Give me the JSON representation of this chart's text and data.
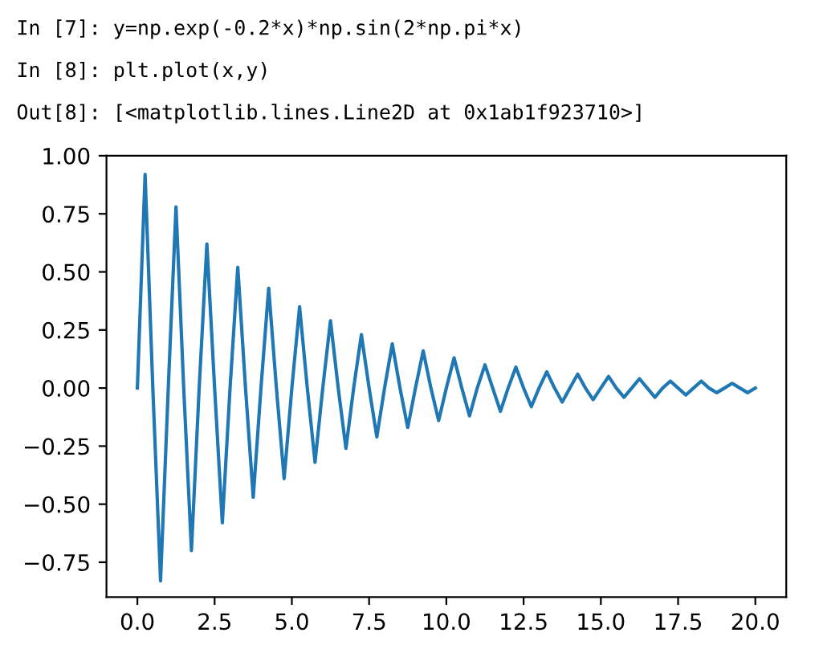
{
  "chart_data": {
    "type": "line",
    "annotations": [
      "In [7]: y=np.exp(-0.2*x)*np.sin(2*np.pi*x)",
      "In [8]: plt.plot(x,y)",
      "Out[8]: [<matplotlib.lines.Line2D at 0x1ab1f923710>]"
    ],
    "series": [
      {
        "color": "#1f77b4",
        "x": [
          0,
          0.25,
          0.5,
          0.75,
          1,
          1.25,
          1.5,
          1.75,
          2,
          2.25,
          2.5,
          2.75,
          3,
          3.25,
          3.5,
          3.75,
          4,
          4.25,
          4.5,
          4.75,
          5,
          5.25,
          5.5,
          5.75,
          6,
          6.25,
          6.5,
          6.75,
          7,
          7.25,
          7.5,
          7.75,
          8,
          8.25,
          8.5,
          8.75,
          9,
          9.25,
          9.5,
          9.75,
          10,
          10.25,
          10.5,
          10.75,
          11,
          11.25,
          11.5,
          11.75,
          12,
          12.25,
          12.5,
          12.75,
          13,
          13.25,
          13.5,
          13.75,
          14,
          14.25,
          14.5,
          14.75,
          15,
          15.25,
          15.5,
          15.75,
          16,
          16.25,
          16.5,
          16.75,
          17,
          17.25,
          17.5,
          17.75,
          18,
          18.25,
          18.5,
          18.75,
          19,
          19.25,
          19.5,
          19.75,
          20
        ],
        "values": [
          0,
          0.92,
          0,
          -0.83,
          0,
          0.78,
          0,
          -0.7,
          0,
          0.62,
          0,
          -0.58,
          0,
          0.52,
          0,
          -0.47,
          0,
          0.43,
          0,
          -0.39,
          0,
          0.35,
          0,
          -0.32,
          0,
          0.29,
          0,
          -0.26,
          0,
          0.23,
          0,
          -0.21,
          0,
          0.19,
          0,
          -0.17,
          0,
          0.16,
          0,
          -0.14,
          0,
          0.13,
          0,
          -0.12,
          0,
          0.1,
          0,
          -0.1,
          0,
          0.09,
          0,
          -0.08,
          0,
          0.07,
          0,
          -0.06,
          0,
          0.06,
          0,
          -0.05,
          0,
          0.05,
          0,
          -0.04,
          0,
          0.04,
          0,
          -0.04,
          0,
          0.03,
          0,
          -0.03,
          0,
          0.03,
          0,
          -0.02,
          0,
          0.02,
          0,
          -0.02,
          0
        ]
      }
    ],
    "xlim": [
      -1,
      21
    ],
    "ylim": [
      -0.9,
      1.0
    ],
    "xticks": [
      {
        "value": 0,
        "label": "0.0"
      },
      {
        "value": 2.5,
        "label": "2.5"
      },
      {
        "value": 5,
        "label": "5.0"
      },
      {
        "value": 7.5,
        "label": "7.5"
      },
      {
        "value": 10,
        "label": "10.0"
      },
      {
        "value": 12.5,
        "label": "12.5"
      },
      {
        "value": 15,
        "label": "15.0"
      },
      {
        "value": 17.5,
        "label": "17.5"
      },
      {
        "value": 20,
        "label": "20.0"
      }
    ],
    "yticks": [
      {
        "value": -0.75,
        "label": "−0.75"
      },
      {
        "value": -0.5,
        "label": "−0.50"
      },
      {
        "value": -0.25,
        "label": "−0.25"
      },
      {
        "value": 0,
        "label": "0.00"
      },
      {
        "value": 0.25,
        "label": "0.25"
      },
      {
        "value": 0.5,
        "label": "0.50"
      },
      {
        "value": 0.75,
        "label": "0.75"
      },
      {
        "value": 1.0,
        "label": "1.00"
      }
    ],
    "grid": false
  }
}
